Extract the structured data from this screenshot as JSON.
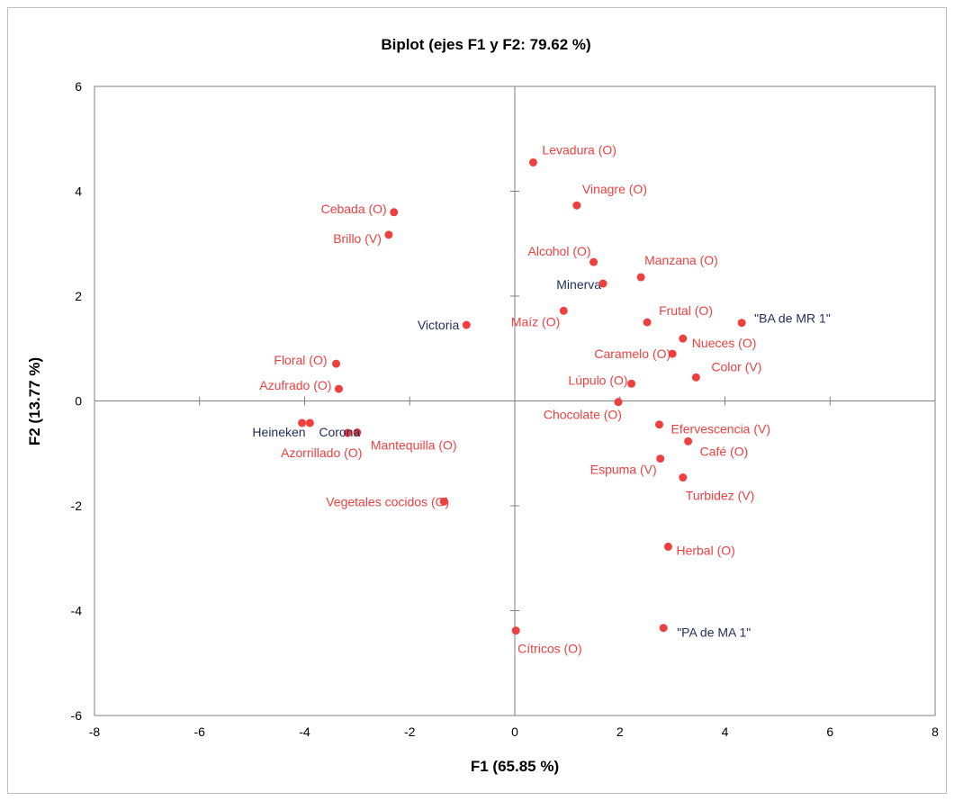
{
  "chart_data": {
    "type": "scatter",
    "title": "Biplot (ejes F1 y F2: 79.62 %)",
    "xlabel": "F1 (65.85 %)",
    "ylabel": "F2 (13.77 %)",
    "xlim": [
      -8,
      8
    ],
    "ylim": [
      -6,
      6
    ],
    "xticks": [
      -8,
      -6,
      -4,
      -2,
      0,
      2,
      4,
      6,
      8
    ],
    "yticks": [
      -6,
      -4,
      -2,
      0,
      2,
      4,
      6
    ],
    "grid": false,
    "legend": "none",
    "colors": {
      "variables": "#ef4040",
      "observations": "#1f2d5a"
    },
    "series": [
      {
        "kind": "variables",
        "points": [
          {
            "label": "Levadura (O)",
            "x": 0.35,
            "y": 4.55
          },
          {
            "label": "Vinagre (O)",
            "x": 1.18,
            "y": 3.73
          },
          {
            "label": "Cebada (O)",
            "x": -2.3,
            "y": 3.6
          },
          {
            "label": "Brillo (V)",
            "x": -2.4,
            "y": 3.17
          },
          {
            "label": "Alcohol (O)",
            "x": 1.5,
            "y": 2.65
          },
          {
            "label": "Manzana (O)",
            "x": 2.4,
            "y": 2.36
          },
          {
            "label": "Maíz (O)",
            "x": 0.93,
            "y": 1.72
          },
          {
            "label": "Frutal (O)",
            "x": 2.52,
            "y": 1.5
          },
          {
            "label": "Nueces (O)",
            "x": 3.2,
            "y": 1.19
          },
          {
            "label": "Caramelo (O)",
            "x": 3.0,
            "y": 0.9
          },
          {
            "label": "Color (V)",
            "x": 3.45,
            "y": 0.45
          },
          {
            "label": "Floral (O)",
            "x": -3.4,
            "y": 0.71
          },
          {
            "label": "Azufrado (O)",
            "x": -3.35,
            "y": 0.23
          },
          {
            "label": "Lúpulo (O)",
            "x": 2.22,
            "y": 0.33
          },
          {
            "label": "Chocolate (O)",
            "x": 1.97,
            "y": -0.02
          },
          {
            "label": "Efervescencia (V)",
            "x": 2.75,
            "y": -0.45
          },
          {
            "label": "Mantequilla (O)",
            "x": -3.0,
            "y": -0.6
          },
          {
            "label": "Azorrillado (O)",
            "x": -3.18,
            "y": -0.61
          },
          {
            "label": "Café (O)",
            "x": 3.3,
            "y": -0.77
          },
          {
            "label": "Espuma (V)",
            "x": 2.77,
            "y": -1.1
          },
          {
            "label": "Turbidez (V)",
            "x": 3.2,
            "y": -1.46
          },
          {
            "label": "Vegetales cocidos (O)",
            "x": -1.35,
            "y": -1.92
          },
          {
            "label": "Herbal (O)",
            "x": 2.92,
            "y": -2.78
          },
          {
            "label": "Cítricos (O)",
            "x": 0.02,
            "y": -4.38
          }
        ]
      },
      {
        "kind": "observations",
        "points": [
          {
            "label": "Minerva",
            "x": 1.68,
            "y": 2.24
          },
          {
            "label": "Victoria",
            "x": -0.92,
            "y": 1.45
          },
          {
            "label": "\"BA de MR 1\"",
            "x": 4.32,
            "y": 1.49
          },
          {
            "label": "Heineken",
            "x": -4.05,
            "y": -0.42
          },
          {
            "label": "Corona",
            "x": -3.9,
            "y": -0.42
          },
          {
            "label": "\"PA de MA 1\"",
            "x": 2.83,
            "y": -4.33
          }
        ]
      }
    ]
  }
}
